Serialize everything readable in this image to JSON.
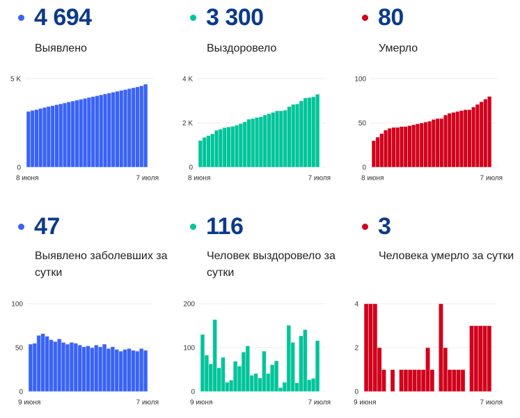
{
  "cards": [
    {
      "value": "4 694",
      "label": "Выявлено",
      "color": "#3a63f5"
    },
    {
      "value": "3 300",
      "label": "Выздоровело",
      "color": "#00c49a"
    },
    {
      "value": "80",
      "label": "Умерло",
      "color": "#d0021b"
    },
    {
      "value": "47",
      "label": "Выявлено заболевших за сутки",
      "color": "#3a63f5"
    },
    {
      "value": "116",
      "label": "Человек выздоровело за сутки",
      "color": "#00c49a"
    },
    {
      "value": "3",
      "label": "Человека умерло за сутки",
      "color": "#d0021b"
    }
  ],
  "chart_data": [
    {
      "type": "bar",
      "title": "Выявлено",
      "ylim": [
        0,
        5000
      ],
      "yticks": [
        "0",
        "5 K"
      ],
      "ytick_values": [
        0,
        5000
      ],
      "xlabels": [
        "8 июня",
        "7 июля"
      ],
      "values": [
        3150,
        3210,
        3260,
        3320,
        3380,
        3430,
        3480,
        3530,
        3580,
        3630,
        3690,
        3740,
        3790,
        3840,
        3890,
        3940,
        3990,
        4040,
        4090,
        4140,
        4190,
        4240,
        4290,
        4340,
        4390,
        4440,
        4490,
        4540,
        4600,
        4694
      ]
    },
    {
      "type": "bar",
      "title": "Выздоровело",
      "ylim": [
        0,
        4000
      ],
      "yticks": [
        "0",
        "2 K",
        "4 K"
      ],
      "ytick_values": [
        0,
        2000,
        4000
      ],
      "xlabels": [
        "8 июня",
        "7 июля"
      ],
      "values": [
        1210,
        1350,
        1430,
        1510,
        1670,
        1720,
        1790,
        1820,
        1850,
        1900,
        1970,
        2050,
        2170,
        2200,
        2250,
        2280,
        2360,
        2420,
        2480,
        2550,
        2550,
        2580,
        2740,
        2840,
        2860,
        3000,
        3130,
        3150,
        3180,
        3300
      ]
    },
    {
      "type": "bar",
      "title": "Умерло",
      "ylim": [
        0,
        100
      ],
      "yticks": [
        "0",
        "50",
        "100"
      ],
      "ytick_values": [
        0,
        50,
        100
      ],
      "xlabels": [
        "8 июня",
        "7 июля"
      ],
      "values": [
        30,
        34,
        38,
        42,
        44,
        45,
        45,
        46,
        46,
        47,
        48,
        49,
        50,
        51,
        52,
        54,
        55,
        55,
        59,
        61,
        62,
        63,
        64,
        65,
        65,
        68,
        71,
        74,
        77,
        80
      ]
    },
    {
      "type": "bar",
      "title": "Выявлено заболевших за сутки",
      "ylim": [
        0,
        100
      ],
      "yticks": [
        "0",
        "50",
        "100"
      ],
      "ytick_values": [
        0,
        50,
        100
      ],
      "xlabels": [
        "9 июня",
        "7 июля"
      ],
      "values": [
        54,
        55,
        64,
        66,
        63,
        59,
        57,
        60,
        56,
        54,
        56,
        55,
        53,
        51,
        52,
        50,
        53,
        51,
        54,
        49,
        51,
        48,
        46,
        48,
        49,
        47,
        46,
        49,
        47
      ]
    },
    {
      "type": "bar",
      "title": "Человек выздоровело за сутки",
      "ylim": [
        0,
        200
      ],
      "yticks": [
        "0",
        "100",
        "200"
      ],
      "ytick_values": [
        0,
        100,
        200
      ],
      "xlabels": [
        "9 июня",
        "7 июля"
      ],
      "values": [
        130,
        83,
        63,
        164,
        54,
        78,
        21,
        26,
        69,
        58,
        90,
        104,
        37,
        41,
        31,
        92,
        41,
        61,
        70,
        9,
        21,
        151,
        112,
        20,
        127,
        141,
        27,
        30,
        116
      ]
    },
    {
      "type": "bar",
      "title": "Человека умерло за сутки",
      "ylim": [
        0,
        4
      ],
      "yticks": [
        "0",
        "2",
        "4"
      ],
      "ytick_values": [
        0,
        2,
        4
      ],
      "xlabels": [
        "9 июня",
        "7 июля"
      ],
      "values": [
        4,
        4,
        4,
        2,
        1,
        0,
        1,
        0,
        1,
        1,
        1,
        1,
        1,
        1,
        2,
        1,
        0,
        4,
        2,
        1,
        1,
        1,
        1,
        0,
        3,
        3,
        3,
        3,
        3
      ]
    }
  ]
}
